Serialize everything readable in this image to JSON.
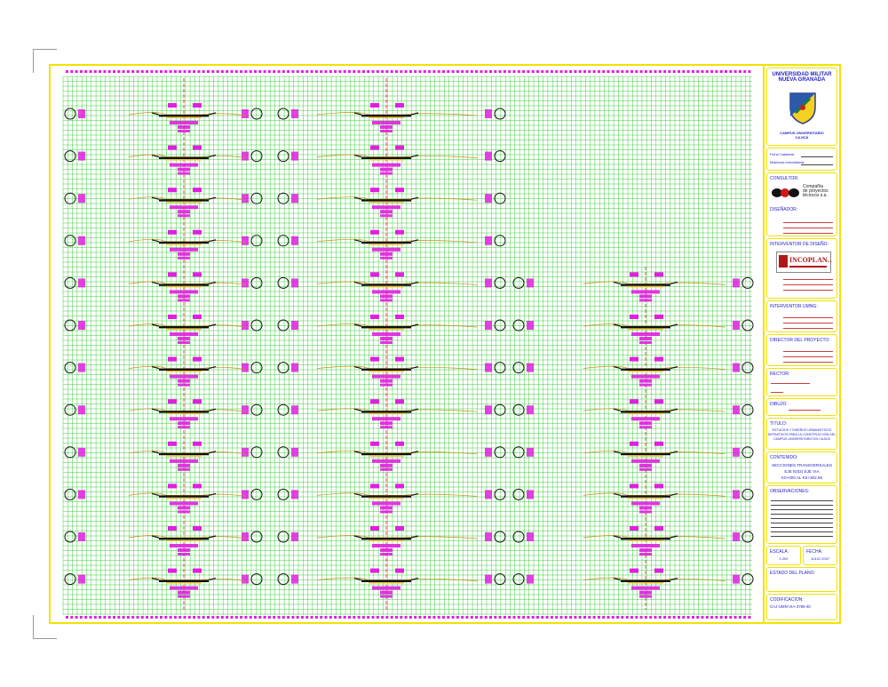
{
  "title_block": {
    "university": [
      "UNIVERSIDAD MILITAR",
      "NUEVA GRANADA"
    ],
    "campus": [
      "CAMPUS UNIVERSITARIO",
      "CAJICÁ"
    ],
    "ficha_catastral_label": "Ficha Catastral:",
    "matricula_label": "Matrícula Inmobiliaria:",
    "consultor_label": "CONSULTOR:",
    "consultor_company": [
      "Compañía",
      "de proyectos",
      "técnicos s.a."
    ],
    "consultor_logo_text": "cpt",
    "disenador_label": "DISEÑADOR:",
    "interventor_diseno_label": "INTERVENTOR DE DISEÑO:",
    "incoplan_name": "INCOPLAN",
    "incoplan_suffix": "S.A.",
    "interventor_umng_label": "INTERVENTOR UMNG:",
    "director_label": "DIRECTOR DEL PROYECTO:",
    "rector_label": "RECTOR:",
    "dibujo_label": "DIBUJO:",
    "titulo_label": "TITULO:",
    "titulo_text": [
      "ESTUDIOS Y DISEÑOS URBANISTICOS",
      "DEFINITIVOS PARA LA CONSTRUCCIÓN DEL",
      "CAMPUS UNIVERSITARIO EN CAJICÁ"
    ],
    "contenido_label": "CONTENIDO:",
    "contenido_text": [
      "SECCIONES TRANSVERSALES",
      "EJE E(02) EJE VIA",
      "K0+000 AL K0+302.56"
    ],
    "observaciones_label": "OBSERVACIONES:",
    "escala_label": "ESCALA:",
    "escala_value": "1:200",
    "fecha_label": "FECHA:",
    "fecha_value": "JULIO 2007",
    "estado_label": "ESTADO DEL PLANO:",
    "codificacion_label": "CODIFICACION:",
    "codificacion_value": "CAJ-UMN-VIA-3786-40"
  },
  "colors": {
    "border": "#f2e200",
    "grid": "#1fc81f",
    "section_labels": "#e020e0",
    "terrain": "#c89018",
    "road": "#101010",
    "axis": "#e02020",
    "text": "#2424c8"
  }
}
